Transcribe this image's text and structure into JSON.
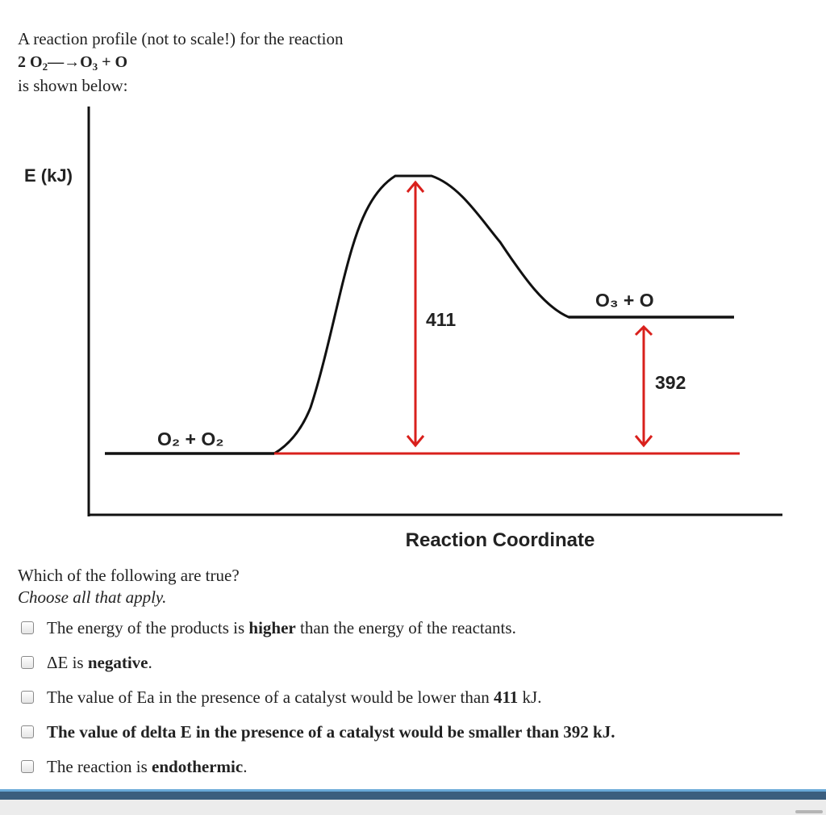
{
  "intro": {
    "line1": "A reaction profile (not to scale!) for the reaction",
    "equation": {
      "coef": "2 ",
      "r": "O",
      "r_sub": "2",
      "arrow": "—→",
      "p": "O",
      "p_sub": "3",
      "rest": " + O"
    },
    "line3": "is shown below:"
  },
  "chart_data": {
    "type": "diagram",
    "ylabel": "E (kJ)",
    "xlabel": "Reaction Coordinate",
    "reactants": "O₂ + O₂",
    "products": "O₃ + O",
    "activation_energy": "411",
    "energy_change": "392",
    "colors": {
      "curve": "#111111",
      "arrows": "#d9201c"
    }
  },
  "question": {
    "prompt": "Which of the following are true?",
    "hint": "Choose all that apply."
  },
  "options": [
    {
      "parts": [
        {
          "t": "The energy of the products is "
        },
        {
          "t": "higher",
          "b": true
        },
        {
          "t": " than the energy of the reactants."
        }
      ]
    },
    {
      "parts": [
        {
          "t": "ΔE is "
        },
        {
          "t": "negative",
          "b": true
        },
        {
          "t": "."
        }
      ]
    },
    {
      "parts": [
        {
          "t": "The value of Ea in the presence of a catalyst would be lower than "
        },
        {
          "t": "411",
          "b": true
        },
        {
          "t": " kJ."
        }
      ]
    },
    {
      "parts": [
        {
          "t": "The value of delta E in the presence of a catalyst would be smaller than 392 kJ.",
          "b": true
        }
      ]
    },
    {
      "parts": [
        {
          "t": "The reaction is "
        },
        {
          "t": "endothermic",
          "b": true
        },
        {
          "t": "."
        }
      ]
    }
  ]
}
